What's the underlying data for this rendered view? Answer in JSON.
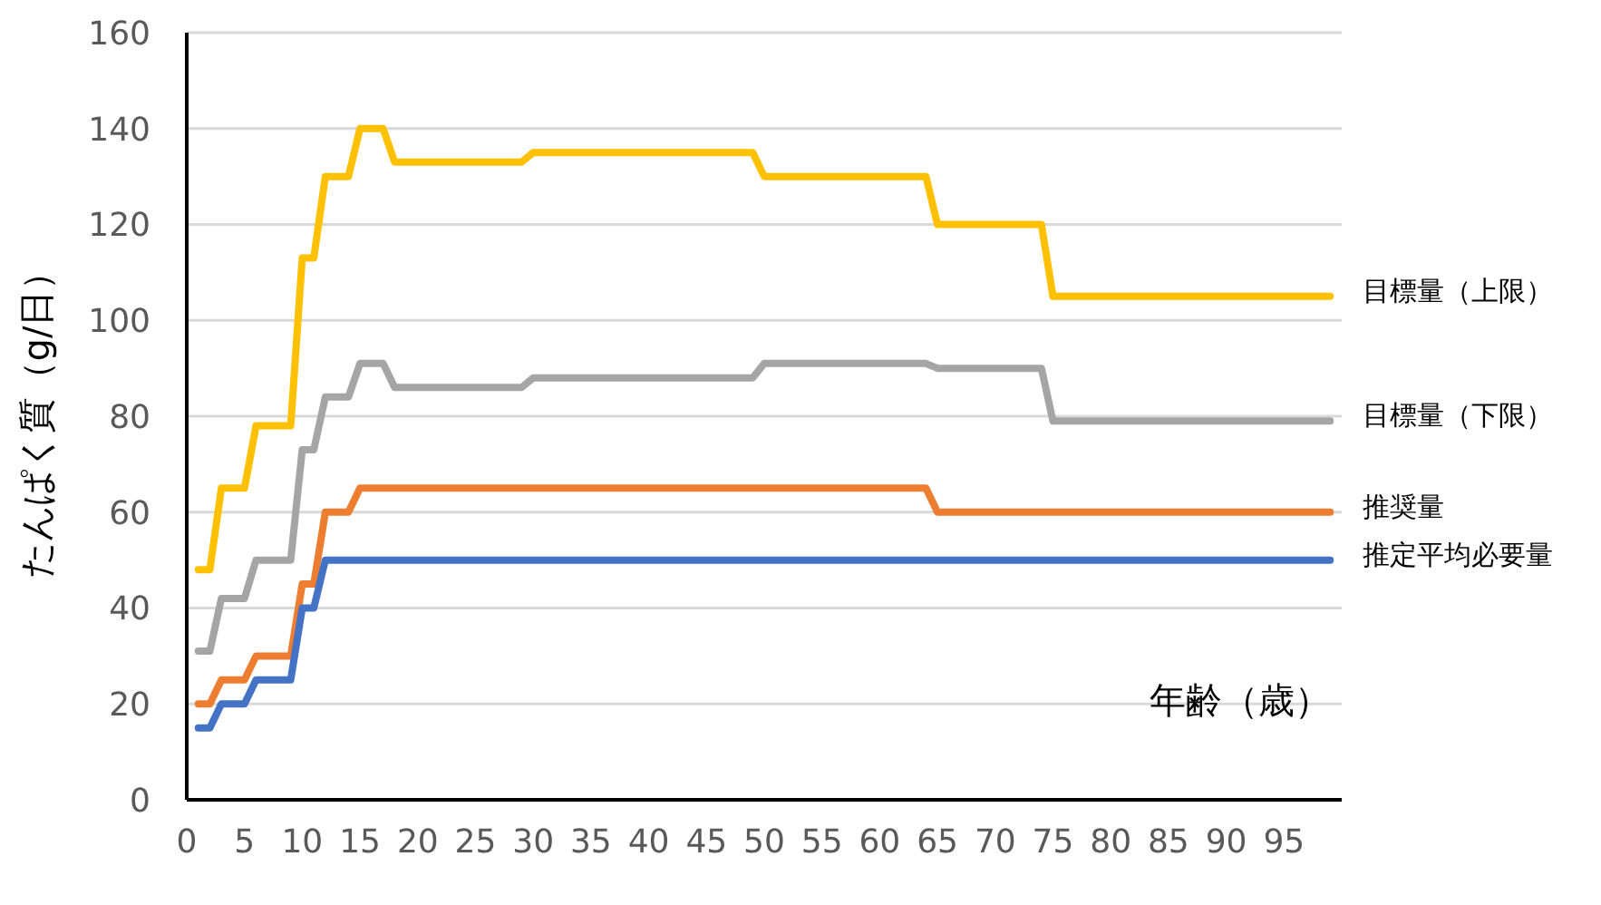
{
  "chart_data": {
    "type": "line",
    "xlabel": "年齢（歳）",
    "ylabel": "たんぱく質（g/日）",
    "xlim": [
      0,
      100
    ],
    "xticks": [
      0,
      5,
      10,
      15,
      20,
      25,
      30,
      35,
      40,
      45,
      50,
      55,
      60,
      65,
      70,
      75,
      80,
      85,
      90,
      95
    ],
    "ylim": [
      0,
      160
    ],
    "yticks": [
      0,
      20,
      40,
      60,
      80,
      100,
      120,
      140,
      160
    ],
    "grid": "y",
    "series": [
      {
        "name": "目標量（上限）",
        "color": "#ffc000",
        "x": [
          1,
          2,
          3,
          5,
          6,
          9,
          10,
          11,
          12,
          14,
          15,
          17,
          18,
          29,
          30,
          49,
          50,
          64,
          65,
          74,
          75,
          99
        ],
        "values": [
          48,
          48,
          65,
          65,
          78,
          78,
          113,
          113,
          130,
          130,
          140,
          140,
          133,
          133,
          135,
          135,
          130,
          130,
          120,
          120,
          105,
          105
        ]
      },
      {
        "name": "目標量（下限）",
        "color": "#a5a5a5",
        "x": [
          1,
          2,
          3,
          5,
          6,
          9,
          10,
          11,
          12,
          14,
          15,
          17,
          18,
          29,
          30,
          49,
          50,
          64,
          65,
          74,
          75,
          99
        ],
        "values": [
          31,
          31,
          42,
          42,
          50,
          50,
          73,
          73,
          84,
          84,
          91,
          91,
          86,
          86,
          88,
          88,
          91,
          91,
          90,
          90,
          79,
          79
        ]
      },
      {
        "name": "推奨量",
        "color": "#ed7d31",
        "x": [
          1,
          2,
          3,
          5,
          6,
          9,
          10,
          11,
          12,
          14,
          15,
          64,
          65,
          99
        ],
        "values": [
          20,
          20,
          25,
          25,
          30,
          30,
          45,
          45,
          60,
          60,
          65,
          65,
          60,
          60
        ]
      },
      {
        "name": "推定平均必要量",
        "color": "#4472c4",
        "x": [
          1,
          2,
          3,
          5,
          6,
          9,
          10,
          11,
          12,
          99
        ],
        "values": [
          15,
          15,
          20,
          20,
          25,
          25,
          40,
          40,
          50,
          50
        ]
      }
    ]
  }
}
